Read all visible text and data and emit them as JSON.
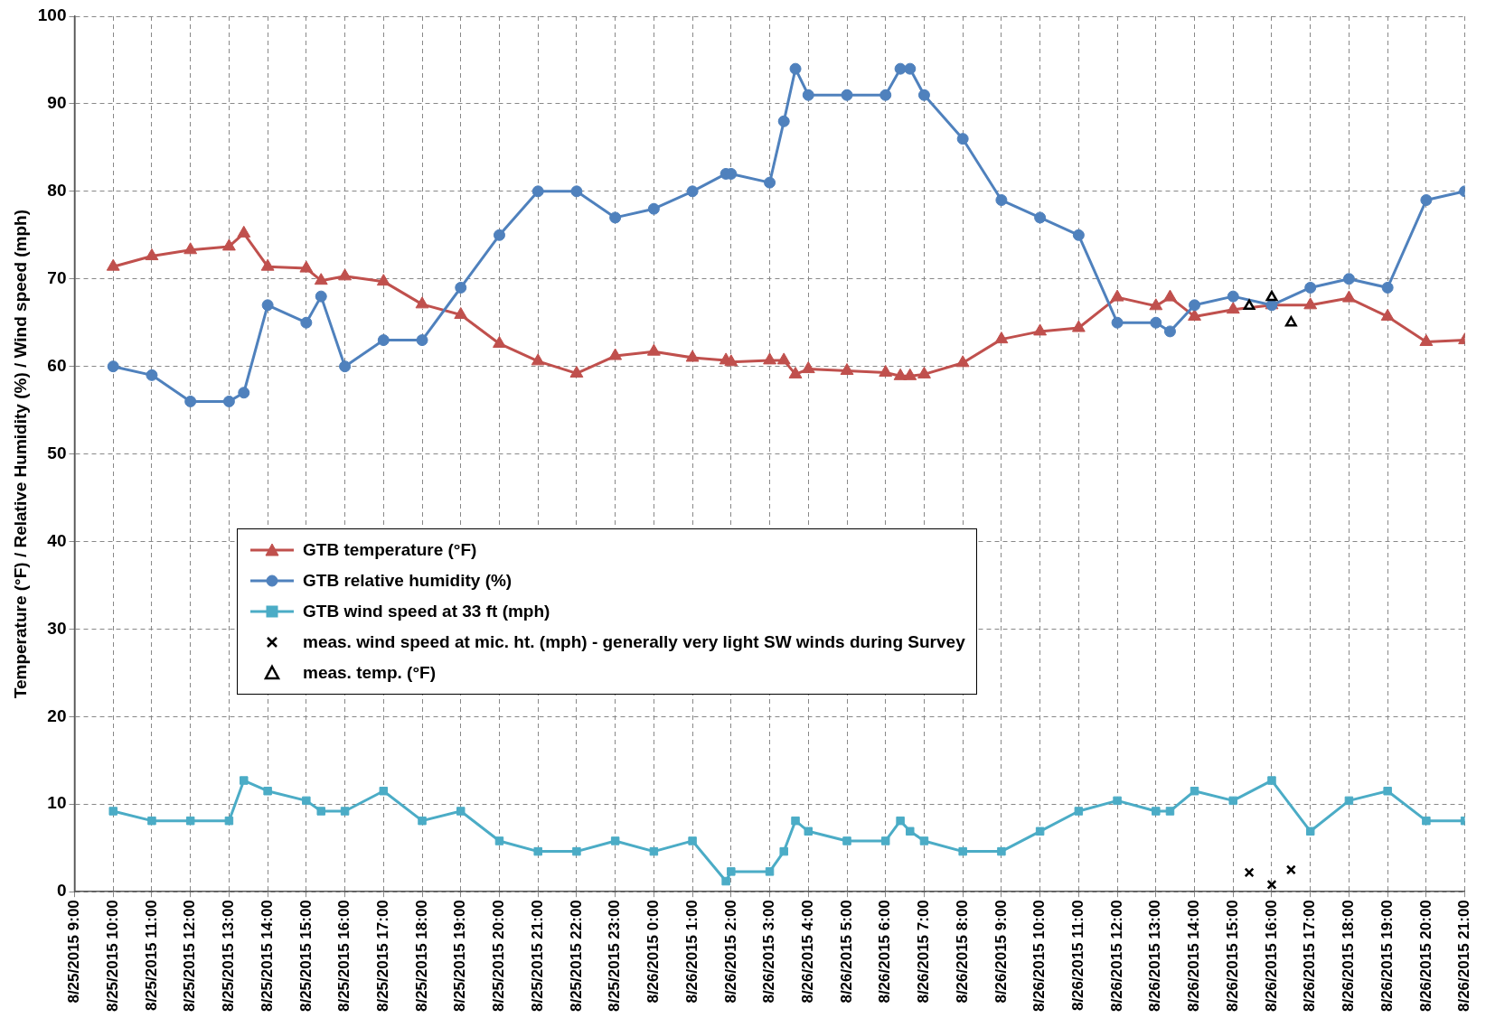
{
  "chart_data": {
    "type": "line",
    "ylabel": "Temperature (°F) / Relative Humidity (%) / Wind speed (mph)",
    "xlim": [
      "2015-08-25T09:00",
      "2015-08-26T21:00"
    ],
    "xticks": [
      {
        "value": "2015-08-25T09:00",
        "label": "8/25/2015 9:00"
      },
      {
        "value": "2015-08-25T10:00",
        "label": "8/25/2015 10:00"
      },
      {
        "value": "2015-08-25T11:00",
        "label": "8/25/2015 11:00"
      },
      {
        "value": "2015-08-25T12:00",
        "label": "8/25/2015 12:00"
      },
      {
        "value": "2015-08-25T13:00",
        "label": "8/25/2015 13:00"
      },
      {
        "value": "2015-08-25T14:00",
        "label": "8/25/2015 14:00"
      },
      {
        "value": "2015-08-25T15:00",
        "label": "8/25/2015 15:00"
      },
      {
        "value": "2015-08-25T16:00",
        "label": "8/25/2015 16:00"
      },
      {
        "value": "2015-08-25T17:00",
        "label": "8/25/2015 17:00"
      },
      {
        "value": "2015-08-25T18:00",
        "label": "8/25/2015 18:00"
      },
      {
        "value": "2015-08-25T19:00",
        "label": "8/25/2015 19:00"
      },
      {
        "value": "2015-08-25T20:00",
        "label": "8/25/2015 20:00"
      },
      {
        "value": "2015-08-25T21:00",
        "label": "8/25/2015 21:00"
      },
      {
        "value": "2015-08-25T22:00",
        "label": "8/25/2015 22:00"
      },
      {
        "value": "2015-08-25T23:00",
        "label": "8/25/2015 23:00"
      },
      {
        "value": "2015-08-26T00:00",
        "label": "8/26/2015 0:00"
      },
      {
        "value": "2015-08-26T01:00",
        "label": "8/26/2015 1:00"
      },
      {
        "value": "2015-08-26T02:00",
        "label": "8/26/2015 2:00"
      },
      {
        "value": "2015-08-26T03:00",
        "label": "8/26/2015 3:00"
      },
      {
        "value": "2015-08-26T04:00",
        "label": "8/26/2015 4:00"
      },
      {
        "value": "2015-08-26T05:00",
        "label": "8/26/2015 5:00"
      },
      {
        "value": "2015-08-26T06:00",
        "label": "8/26/2015 6:00"
      },
      {
        "value": "2015-08-26T07:00",
        "label": "8/26/2015 7:00"
      },
      {
        "value": "2015-08-26T08:00",
        "label": "8/26/2015 8:00"
      },
      {
        "value": "2015-08-26T09:00",
        "label": "8/26/2015 9:00"
      },
      {
        "value": "2015-08-26T10:00",
        "label": "8/26/2015 10:00"
      },
      {
        "value": "2015-08-26T11:00",
        "label": "8/26/2015 11:00"
      },
      {
        "value": "2015-08-26T12:00",
        "label": "8/26/2015 12:00"
      },
      {
        "value": "2015-08-26T13:00",
        "label": "8/26/2015 13:00"
      },
      {
        "value": "2015-08-26T14:00",
        "label": "8/26/2015 14:00"
      },
      {
        "value": "2015-08-26T15:00",
        "label": "8/26/2015 15:00"
      },
      {
        "value": "2015-08-26T16:00",
        "label": "8/26/2015 16:00"
      },
      {
        "value": "2015-08-26T17:00",
        "label": "8/26/2015 17:00"
      },
      {
        "value": "2015-08-26T18:00",
        "label": "8/26/2015 18:00"
      },
      {
        "value": "2015-08-26T19:00",
        "label": "8/26/2015 19:00"
      },
      {
        "value": "2015-08-26T20:00",
        "label": "8/26/2015 20:00"
      },
      {
        "value": "2015-08-26T21:00",
        "label": "8/26/2015 21:00"
      }
    ],
    "ylim": [
      0,
      100
    ],
    "yticks": [
      0,
      10,
      20,
      30,
      40,
      50,
      60,
      70,
      80,
      90,
      100
    ],
    "grid": true,
    "legend": "left",
    "series": [
      {
        "name": "GTB temperature (°F)",
        "type": "line",
        "marker": "triangle",
        "color": "#c0504d",
        "x": [
          "2015-08-25T10:00",
          "2015-08-25T11:00",
          "2015-08-25T12:00",
          "2015-08-25T13:00",
          "2015-08-25T13:23",
          "2015-08-25T14:00",
          "2015-08-25T15:00",
          "2015-08-25T15:23",
          "2015-08-25T16:00",
          "2015-08-25T17:00",
          "2015-08-25T18:00",
          "2015-08-25T19:00",
          "2015-08-25T20:00",
          "2015-08-25T21:00",
          "2015-08-25T22:00",
          "2015-08-25T23:00",
          "2015-08-26T00:00",
          "2015-08-26T01:00",
          "2015-08-26T01:52",
          "2015-08-26T02:00",
          "2015-08-26T03:00",
          "2015-08-26T03:22",
          "2015-08-26T03:40",
          "2015-08-26T04:00",
          "2015-08-26T05:00",
          "2015-08-26T06:00",
          "2015-08-26T06:23",
          "2015-08-26T06:38",
          "2015-08-26T07:00",
          "2015-08-26T08:00",
          "2015-08-26T09:00",
          "2015-08-26T10:00",
          "2015-08-26T11:00",
          "2015-08-26T12:00",
          "2015-08-26T13:00",
          "2015-08-26T13:22",
          "2015-08-26T14:00",
          "2015-08-26T15:00",
          "2015-08-26T16:00",
          "2015-08-26T17:00",
          "2015-08-26T18:00",
          "2015-08-26T19:00",
          "2015-08-26T20:00",
          "2015-08-26T21:00"
        ],
        "values": [
          71.4,
          72.6,
          73.3,
          73.7,
          75.2,
          71.4,
          71.2,
          69.8,
          70.3,
          69.7,
          67.1,
          65.9,
          62.6,
          60.6,
          59.2,
          61.2,
          61.7,
          61.0,
          60.7,
          60.5,
          60.7,
          60.7,
          59.1,
          59.7,
          59.5,
          59.3,
          58.9,
          58.9,
          59.1,
          60.4,
          63.1,
          64.0,
          64.4,
          67.9,
          66.9,
          67.9,
          65.7,
          66.5,
          67.0,
          67.0,
          67.8,
          65.7,
          62.8,
          63.0
        ]
      },
      {
        "name": "GTB relative humidity (%)",
        "type": "line",
        "marker": "circle",
        "color": "#4f81bd",
        "x": [
          "2015-08-25T10:00",
          "2015-08-25T11:00",
          "2015-08-25T12:00",
          "2015-08-25T13:00",
          "2015-08-25T13:23",
          "2015-08-25T14:00",
          "2015-08-25T15:00",
          "2015-08-25T15:23",
          "2015-08-25T16:00",
          "2015-08-25T17:00",
          "2015-08-25T18:00",
          "2015-08-25T19:00",
          "2015-08-25T20:00",
          "2015-08-25T21:00",
          "2015-08-25T22:00",
          "2015-08-25T23:00",
          "2015-08-26T00:00",
          "2015-08-26T01:00",
          "2015-08-26T01:52",
          "2015-08-26T02:00",
          "2015-08-26T03:00",
          "2015-08-26T03:22",
          "2015-08-26T03:40",
          "2015-08-26T04:00",
          "2015-08-26T05:00",
          "2015-08-26T06:00",
          "2015-08-26T06:23",
          "2015-08-26T06:38",
          "2015-08-26T07:00",
          "2015-08-26T08:00",
          "2015-08-26T09:00",
          "2015-08-26T10:00",
          "2015-08-26T11:00",
          "2015-08-26T12:00",
          "2015-08-26T13:00",
          "2015-08-26T13:22",
          "2015-08-26T14:00",
          "2015-08-26T15:00",
          "2015-08-26T16:00",
          "2015-08-26T17:00",
          "2015-08-26T18:00",
          "2015-08-26T19:00",
          "2015-08-26T20:00",
          "2015-08-26T21:00"
        ],
        "values": [
          60,
          59,
          56,
          56,
          57,
          67,
          65,
          68,
          60,
          63,
          63,
          69,
          75,
          80,
          80,
          77,
          78,
          80,
          82,
          82,
          81,
          88,
          94,
          91,
          91,
          91,
          94,
          94,
          91,
          86,
          79,
          77,
          75,
          65,
          65,
          64,
          67,
          68,
          67,
          69,
          70,
          69,
          79,
          80
        ]
      },
      {
        "name": "GTB wind speed at 33 ft (mph)",
        "type": "line",
        "marker": "square",
        "color": "#4bacc6",
        "x": [
          "2015-08-25T10:00",
          "2015-08-25T11:00",
          "2015-08-25T12:00",
          "2015-08-25T13:00",
          "2015-08-25T13:23",
          "2015-08-25T14:00",
          "2015-08-25T15:00",
          "2015-08-25T15:23",
          "2015-08-25T16:00",
          "2015-08-25T17:00",
          "2015-08-25T18:00",
          "2015-08-25T19:00",
          "2015-08-25T20:00",
          "2015-08-25T21:00",
          "2015-08-25T22:00",
          "2015-08-25T23:00",
          "2015-08-26T00:00",
          "2015-08-26T01:00",
          "2015-08-26T01:52",
          "2015-08-26T02:00",
          "2015-08-26T03:00",
          "2015-08-26T03:22",
          "2015-08-26T03:40",
          "2015-08-26T04:00",
          "2015-08-26T05:00",
          "2015-08-26T06:00",
          "2015-08-26T06:23",
          "2015-08-26T06:38",
          "2015-08-26T07:00",
          "2015-08-26T08:00",
          "2015-08-26T09:00",
          "2015-08-26T10:00",
          "2015-08-26T11:00",
          "2015-08-26T12:00",
          "2015-08-26T13:00",
          "2015-08-26T13:22",
          "2015-08-26T14:00",
          "2015-08-26T15:00",
          "2015-08-26T16:00",
          "2015-08-26T17:00",
          "2015-08-26T18:00",
          "2015-08-26T19:00",
          "2015-08-26T20:00",
          "2015-08-26T21:00"
        ],
        "values": [
          9.2,
          8.1,
          8.1,
          8.1,
          12.7,
          11.5,
          10.4,
          9.2,
          9.2,
          11.5,
          8.1,
          9.2,
          5.8,
          4.6,
          4.6,
          5.8,
          4.6,
          5.8,
          1.2,
          2.3,
          2.3,
          4.6,
          8.1,
          6.9,
          5.8,
          5.8,
          8.1,
          6.9,
          5.8,
          4.6,
          4.6,
          6.9,
          9.2,
          10.4,
          9.2,
          9.2,
          11.5,
          10.4,
          12.7,
          6.9,
          10.4,
          11.5,
          8.1,
          8.1
        ]
      },
      {
        "name": "meas. wind speed at mic. ht. (mph) - generally very light SW winds during Survey",
        "type": "scatter",
        "marker": "cross",
        "color": "#000000",
        "x": [
          "2015-08-26T15:25",
          "2015-08-26T16:00",
          "2015-08-26T16:30"
        ],
        "values": [
          2.2,
          0.8,
          2.5
        ]
      },
      {
        "name": "meas. temp. (°F)",
        "type": "scatter",
        "marker": "triangle",
        "color": "#000000",
        "x": [
          "2015-08-26T15:25",
          "2015-08-26T16:00",
          "2015-08-26T16:30"
        ],
        "values": [
          66.9,
          67.9,
          65.0
        ]
      }
    ]
  }
}
